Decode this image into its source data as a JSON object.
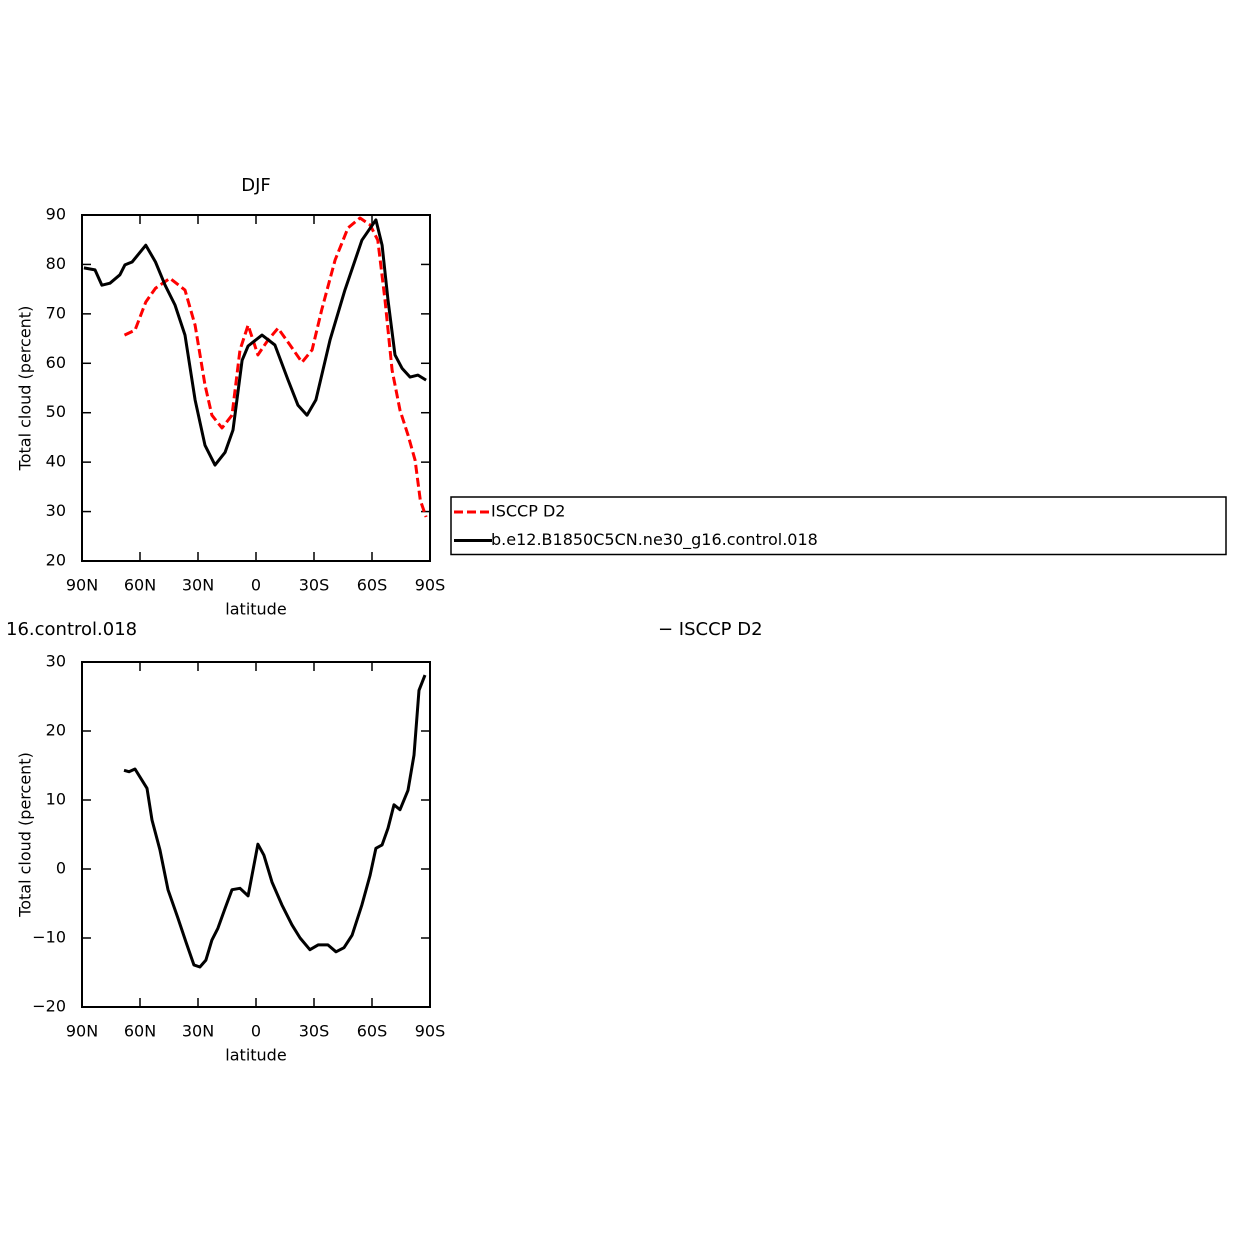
{
  "chart_data": [
    {
      "type": "line",
      "title": "DJF",
      "xlabel": "latitude",
      "ylabel": "Total cloud (percent)",
      "xlim": [
        90,
        -90
      ],
      "ylim": [
        20,
        90
      ],
      "xticks": [
        {
          "value": 90,
          "label": "90N"
        },
        {
          "value": 60,
          "label": "60N"
        },
        {
          "value": 30,
          "label": "30N"
        },
        0,
        {
          "value": -30,
          "label": "30S"
        },
        {
          "value": -60,
          "label": "60S"
        },
        {
          "value": -90,
          "label": "90S"
        }
      ],
      "yticks": [
        20,
        30,
        40,
        50,
        60,
        70,
        80,
        90
      ],
      "legend": "right",
      "series": [
        {
          "name": "ISCCP D2",
          "color": "#ff0000",
          "dash": true,
          "x": [
            68,
            62.6,
            57,
            52,
            44.5,
            36.7,
            31.5,
            26.4,
            22.8,
            17.6,
            12.4,
            8.3,
            4.1,
            -1,
            -6.2,
            -11.4,
            -17.6,
            -23.8,
            -29,
            -34,
            -40.9,
            -47.6,
            -53.8,
            -59,
            -63,
            -66.7,
            -70.4,
            -74.5,
            -78.6,
            -82.3,
            -85,
            -88
          ],
          "values": [
            65.7,
            66.7,
            72.4,
            75.2,
            77.2,
            74.8,
            67.7,
            55.6,
            49.5,
            46.9,
            49.5,
            62.7,
            67.7,
            61.7,
            64.7,
            67.1,
            63.7,
            60.2,
            62.7,
            70.8,
            80.9,
            87.4,
            89.4,
            88,
            84.9,
            72.8,
            58.6,
            50.5,
            45.5,
            40.4,
            32.3,
            28.9
          ]
        },
        {
          "name": "b.e12.B1850C5CN.ne30_g16.control.018",
          "color": "#000000",
          "dash": false,
          "x": [
            89,
            83.3,
            79.7,
            75.5,
            70.4,
            67.8,
            64.1,
            57,
            52,
            47,
            41.9,
            36.7,
            31.5,
            26.4,
            21.2,
            16,
            11.9,
            7.2,
            4.1,
            -3.1,
            -9.8,
            -16.6,
            -21.7,
            -26.4,
            -31,
            -38.3,
            -46,
            -54.8,
            -62,
            -65.2,
            -68.3,
            -71.9,
            -75.5,
            -79.7,
            -83.8,
            -88
          ],
          "values": [
            79.3,
            78.9,
            75.8,
            76.2,
            77.9,
            79.9,
            80.5,
            83.9,
            80.5,
            75.8,
            71.8,
            65.7,
            52.6,
            43.4,
            39.4,
            42,
            46.5,
            60.6,
            63.5,
            65.7,
            63.7,
            56.6,
            51.5,
            49.5,
            52.6,
            64.7,
            74.8,
            84.9,
            89,
            83.9,
            72.8,
            61.7,
            59,
            57.2,
            57.6,
            56.6
          ]
        }
      ]
    },
    {
      "type": "line",
      "title_left": "16.control.018",
      "title_right": "− ISCCP D2",
      "xlabel": "latitude",
      "ylabel": "Total cloud (percent)",
      "xlim": [
        90,
        -90
      ],
      "ylim": [
        -20,
        30
      ],
      "xticks": [
        {
          "value": 90,
          "label": "90N"
        },
        {
          "value": 60,
          "label": "60N"
        },
        {
          "value": 30,
          "label": "30N"
        },
        0,
        {
          "value": -30,
          "label": "30S"
        },
        {
          "value": -60,
          "label": "60S"
        },
        {
          "value": -90,
          "label": "90S"
        }
      ],
      "yticks": [
        {
          "value": -20,
          "label": "−20"
        },
        {
          "value": -10,
          "label": "−10"
        },
        0,
        10,
        20,
        30
      ],
      "series": [
        {
          "color": "#000000",
          "dash": false,
          "x": [
            68.3,
            65.7,
            62.6,
            56.4,
            53.8,
            49.7,
            45.5,
            40.4,
            36.2,
            32.1,
            29,
            25.9,
            22.8,
            19.7,
            16,
            12.4,
            8.3,
            4.1,
            -1,
            -4.1,
            -8.3,
            -13.4,
            -18.6,
            -22.8,
            -27.9,
            -32.1,
            -37.2,
            -41.4,
            -45.5,
            -49.7,
            -54.8,
            -59,
            -62,
            -65.2,
            -68.3,
            -71.4,
            -74.5,
            -78.6,
            -81.7,
            -84.3,
            -87.4
          ],
          "values": [
            14.3,
            14.1,
            14.5,
            11.7,
            7.1,
            2.8,
            -3,
            -7.1,
            -10.6,
            -13.9,
            -14.2,
            -13.2,
            -10.3,
            -8.6,
            -5.7,
            -3,
            -2.8,
            -3.9,
            3.6,
            2,
            -1.9,
            -5.2,
            -8.1,
            -10,
            -11.7,
            -11,
            -11,
            -12,
            -11.4,
            -9.6,
            -5.2,
            -0.9,
            3,
            3.5,
            5.9,
            9.3,
            8.6,
            11.4,
            16.5,
            25.9,
            28.1
          ]
        }
      ]
    }
  ]
}
